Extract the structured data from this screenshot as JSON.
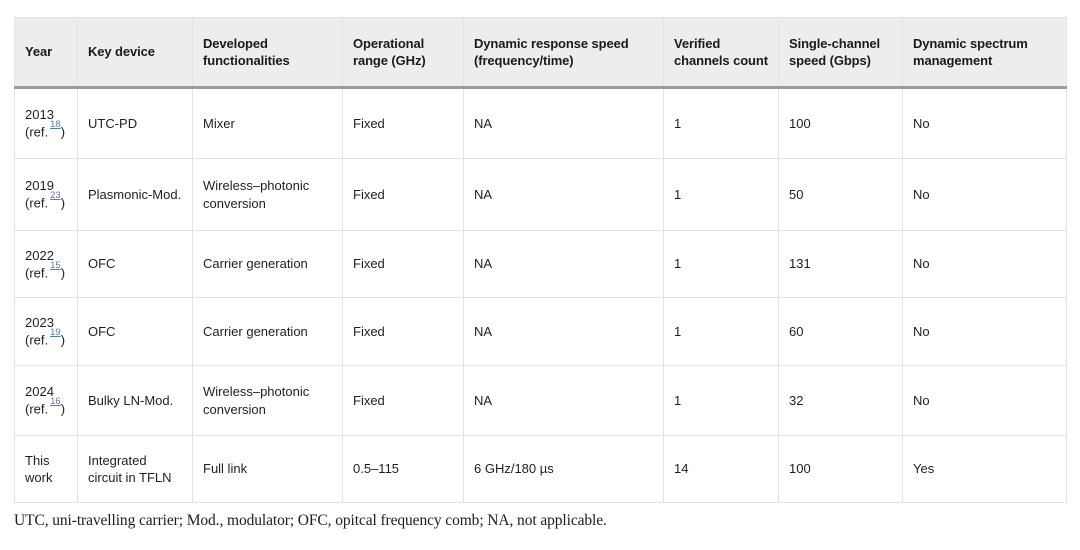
{
  "colors": {
    "header_bg": "#ededed",
    "thick_rule": "#9c9c9c",
    "grid_line": "#e3e3e3",
    "ref_link": "#5a7ca6",
    "text": "#1f1f1f"
  },
  "labels": {
    "ref_open": "(ref.",
    "ref_close": ")"
  },
  "table": {
    "columns": [
      "Year",
      "Key device",
      "Developed functionalities",
      "Operational range (GHz)",
      "Dynamic response speed (frequency/time)",
      "Verified channels count",
      "Single-channel speed (Gbps)",
      "Dynamic spectrum management"
    ],
    "rows": [
      {
        "year": "2013",
        "ref": "18",
        "key_device": "UTC-PD",
        "functionalities": "Mixer",
        "range": "Fixed",
        "response": "NA",
        "channels": "1",
        "speed": "100",
        "management": "No"
      },
      {
        "year": "2019",
        "ref": "23",
        "key_device": "Plasmonic-Mod.",
        "functionalities": "Wireless–photonic conversion",
        "range": "Fixed",
        "response": "NA",
        "channels": "1",
        "speed": "50",
        "management": "No"
      },
      {
        "year": "2022",
        "ref": "15",
        "key_device": "OFC",
        "functionalities": "Carrier generation",
        "range": "Fixed",
        "response": "NA",
        "channels": "1",
        "speed": "131",
        "management": "No"
      },
      {
        "year": "2023",
        "ref": "19",
        "key_device": "OFC",
        "functionalities": "Carrier generation",
        "range": "Fixed",
        "response": "NA",
        "channels": "1",
        "speed": "60",
        "management": "No"
      },
      {
        "year": "2024",
        "ref": "16",
        "key_device": "Bulky LN-Mod.",
        "functionalities": "Wireless–photonic conversion",
        "range": "Fixed",
        "response": "NA",
        "channels": "1",
        "speed": "32",
        "management": "No"
      },
      {
        "year": "This work",
        "ref": null,
        "key_device": "Integrated circuit in TFLN",
        "functionalities": "Full link",
        "range": "0.5–115",
        "response": "6 GHz/180 µs",
        "channels": "14",
        "speed": "100",
        "management": "Yes"
      }
    ]
  },
  "footnote": "UTC, uni-travelling carrier; Mod., modulator; OFC, opitcal frequency comb; NA, not applicable."
}
